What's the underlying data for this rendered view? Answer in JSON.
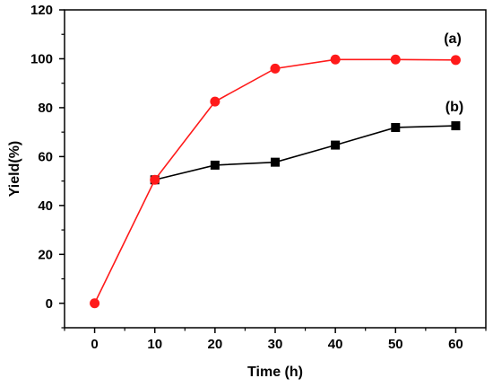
{
  "chart_data": {
    "type": "line",
    "title": "",
    "xlabel": "Time (h)",
    "ylabel": "Yield(%)",
    "x": [
      0,
      10,
      20,
      30,
      40,
      50,
      60
    ],
    "xlim": [
      -5,
      65
    ],
    "ylim": [
      -10,
      120
    ],
    "xticks": [
      0,
      10,
      20,
      30,
      40,
      50,
      60
    ],
    "yticks": [
      0,
      20,
      40,
      60,
      80,
      100,
      120
    ],
    "grid": false,
    "series": [
      {
        "name": "(a)",
        "marker": "circle",
        "color": "#ff1a1a",
        "x": [
          0,
          10,
          20,
          30,
          40,
          50,
          60
        ],
        "values": [
          0,
          50.5,
          82.5,
          96,
          99.7,
          99.7,
          99.5
        ]
      },
      {
        "name": "(b)",
        "marker": "square",
        "color": "#000000",
        "x": [
          10,
          20,
          30,
          40,
          50,
          60
        ],
        "values": [
          50.5,
          56.5,
          57.7,
          64.7,
          71.9,
          72.6
        ]
      }
    ]
  }
}
